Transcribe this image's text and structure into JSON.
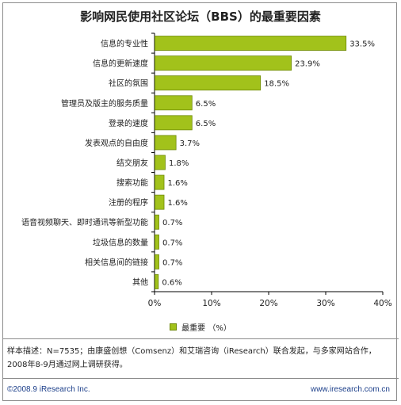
{
  "chart_data": {
    "type": "bar",
    "orientation": "horizontal",
    "title": "影响网民使用社区论坛（BBS）的最重要因素",
    "categories": [
      "信息的专业性",
      "信息的更新速度",
      "社区的氛围",
      "管理员及版主的服务质量",
      "登录的速度",
      "发表观点的自由度",
      "结交朋友",
      "搜索功能",
      "注册的程序",
      "语音视频聊天、即时通讯等新型功能",
      "垃圾信息的数量",
      "相关信息间的链接",
      "其他"
    ],
    "series": [
      {
        "name": "最重要 （%）",
        "values": [
          33.5,
          23.9,
          18.5,
          6.5,
          6.5,
          3.7,
          1.8,
          1.6,
          1.6,
          0.7,
          0.7,
          0.7,
          0.6
        ]
      }
    ],
    "data_labels": [
      "33.5%",
      "23.9%",
      "18.5%",
      "6.5%",
      "6.5%",
      "3.7%",
      "1.8%",
      "1.6%",
      "1.6%",
      "0.7%",
      "0.7%",
      "0.7%",
      "0.6%"
    ],
    "xlim": [
      0,
      40
    ],
    "x_ticks": [
      0,
      10,
      20,
      30,
      40
    ],
    "x_tick_labels": [
      "0%",
      "10%",
      "20%",
      "30%",
      "40%"
    ],
    "grid": false,
    "legend_position": "bottom",
    "bar_color": "#a2c21b",
    "bar_border_color": "#6f8a08"
  },
  "note": "样本描述：N=7535；由康盛创想（Comsenz）和艾瑞咨询（iResearch）联合发起，与多家网站合作，2008年8-9月通过网上调研获得。",
  "footer": {
    "copyright": "©2008.9 iResearch Inc.",
    "website": "www.iresearch.com.cn"
  }
}
